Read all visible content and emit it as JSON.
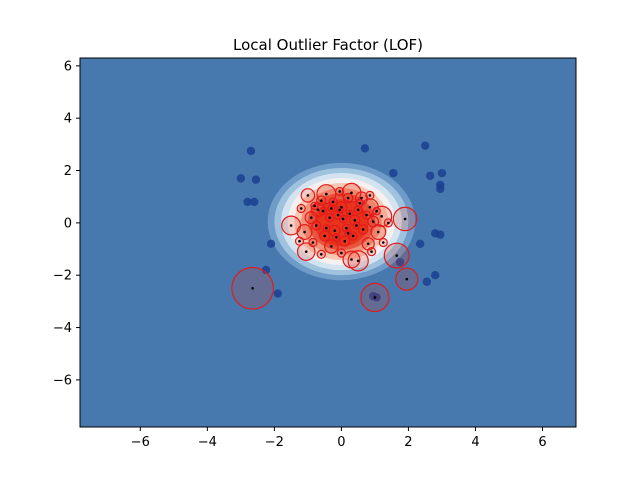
{
  "chart_data": {
    "type": "scatter",
    "title": "Local Outlier Factor (LOF)",
    "xlabel": "",
    "ylabel": "",
    "xlim": [
      -7.8,
      7.0
    ],
    "ylim": [
      -7.8,
      6.3
    ],
    "x_ticks": [
      -6,
      -4,
      -2,
      0,
      2,
      4,
      6
    ],
    "y_ticks": [
      -6,
      -4,
      -2,
      0,
      2,
      4,
      6
    ],
    "x_tick_labels": [
      "−6",
      "−4",
      "−2",
      "0",
      "2",
      "4",
      "6"
    ],
    "y_tick_labels": [
      "−6",
      "−4",
      "−2",
      "0",
      "2",
      "4",
      "6"
    ],
    "grid": false,
    "colors": {
      "background": "#4779ae",
      "dense_core": "#e8341c",
      "outlier_points": "#1a3f91",
      "sample_points": "#000000",
      "circle_edge": "#e31a1c"
    },
    "contour_levels": [
      {
        "rx": 2.2,
        "ry": 1.75,
        "color": "#6f9bc9"
      },
      {
        "rx": 2.0,
        "ry": 1.6,
        "color": "#9fc2de"
      },
      {
        "rx": 1.8,
        "ry": 1.45,
        "color": "#d3e4f0"
      },
      {
        "rx": 1.6,
        "ry": 1.3,
        "color": "#f6f1ef"
      },
      {
        "rx": 1.4,
        "ry": 1.15,
        "color": "#f7c9b4"
      },
      {
        "rx": 1.2,
        "ry": 1.0,
        "color": "#f2947a"
      },
      {
        "rx": 1.0,
        "ry": 0.85,
        "color": "#e8553e"
      }
    ],
    "outlier_points": [
      {
        "x": -2.7,
        "y": 2.75
      },
      {
        "x": -3.0,
        "y": 1.7
      },
      {
        "x": -2.55,
        "y": 1.65
      },
      {
        "x": -2.8,
        "y": 0.8
      },
      {
        "x": -2.6,
        "y": 0.8
      },
      {
        "x": 0.7,
        "y": 2.85
      },
      {
        "x": 1.55,
        "y": 1.9
      },
      {
        "x": 2.5,
        "y": 2.95
      },
      {
        "x": 2.65,
        "y": 1.8
      },
      {
        "x": 3.0,
        "y": 1.9
      },
      {
        "x": 2.95,
        "y": 1.45
      },
      {
        "x": 2.95,
        "y": 1.3
      },
      {
        "x": 2.8,
        "y": -0.4
      },
      {
        "x": 2.95,
        "y": -0.45
      },
      {
        "x": 2.35,
        "y": -0.8
      },
      {
        "x": 2.8,
        "y": -2.0
      },
      {
        "x": 2.55,
        "y": -2.25
      },
      {
        "x": -2.1,
        "y": -0.8
      },
      {
        "x": -2.25,
        "y": -1.8
      },
      {
        "x": -1.9,
        "y": -2.7
      },
      {
        "x": 0.95,
        "y": -2.8
      },
      {
        "x": 1.05,
        "y": -2.85
      },
      {
        "x": 1.75,
        "y": -1.5
      }
    ],
    "samples": [
      {
        "x": -2.65,
        "y": -2.5,
        "r": 0.62
      },
      {
        "x": 1.0,
        "y": -2.85,
        "r": 0.42
      },
      {
        "x": 1.95,
        "y": -2.15,
        "r": 0.33
      },
      {
        "x": 1.65,
        "y": -1.25,
        "r": 0.37
      },
      {
        "x": 1.9,
        "y": 0.15,
        "r": 0.35
      },
      {
        "x": 1.2,
        "y": 0.25,
        "r": 0.3
      },
      {
        "x": -1.5,
        "y": -0.1,
        "r": 0.28
      },
      {
        "x": -1.05,
        "y": -1.1,
        "r": 0.26
      },
      {
        "x": -1.1,
        "y": -0.35,
        "r": 0.22
      },
      {
        "x": 0.5,
        "y": -1.45,
        "r": 0.3
      },
      {
        "x": 0.3,
        "y": -1.4,
        "r": 0.25
      },
      {
        "x": 0.3,
        "y": 1.15,
        "r": 0.28
      },
      {
        "x": -0.45,
        "y": 1.1,
        "r": 0.28
      },
      {
        "x": -1.0,
        "y": 1.05,
        "r": 0.2
      },
      {
        "x": 0.85,
        "y": 0.6,
        "r": 0.25
      },
      {
        "x": 1.1,
        "y": -0.35,
        "r": 0.22
      },
      {
        "x": -0.7,
        "y": 0.5,
        "r": 0.2
      },
      {
        "x": 0.6,
        "y": 0.95,
        "r": 0.18
      },
      {
        "x": -0.3,
        "y": -0.9,
        "r": 0.2
      },
      {
        "x": 0.8,
        "y": -0.8,
        "r": 0.18
      },
      {
        "x": -0.9,
        "y": 0.2,
        "r": 0.18
      },
      {
        "x": 0.0,
        "y": 0.6,
        "r": 0.16
      },
      {
        "x": -0.2,
        "y": -0.3,
        "r": 0.16
      },
      {
        "x": 0.4,
        "y": 0.1,
        "r": 0.15
      },
      {
        "x": 0.1,
        "y": -0.7,
        "r": 0.15
      },
      {
        "x": -0.5,
        "y": -0.5,
        "r": 0.15
      },
      {
        "x": 0.95,
        "y": 0.05,
        "r": 0.16
      },
      {
        "x": -0.6,
        "y": 0.85,
        "r": 0.14
      },
      {
        "x": 0.2,
        "y": 0.95,
        "r": 0.14
      },
      {
        "x": 0.65,
        "y": -0.25,
        "r": 0.14
      },
      {
        "x": -0.1,
        "y": 0.3,
        "r": 0.13
      },
      {
        "x": -0.75,
        "y": -0.1,
        "r": 0.13
      },
      {
        "x": 0.5,
        "y": 0.5,
        "r": 0.12
      },
      {
        "x": -0.35,
        "y": 0.2,
        "r": 0.12
      },
      {
        "x": 0.15,
        "y": -0.2,
        "r": 0.12
      },
      {
        "x": 0.75,
        "y": 0.3,
        "r": 0.12
      },
      {
        "x": -0.25,
        "y": 0.8,
        "r": 0.12
      },
      {
        "x": 0.35,
        "y": -0.5,
        "r": 0.12
      },
      {
        "x": -0.55,
        "y": 0.45,
        "r": 0.11
      },
      {
        "x": 0.05,
        "y": 0.15,
        "r": 0.11
      },
      {
        "x": -0.15,
        "y": -0.55,
        "r": 0.11
      },
      {
        "x": 0.55,
        "y": 0.75,
        "r": 0.11
      },
      {
        "x": -0.8,
        "y": 0.65,
        "r": 0.11
      },
      {
        "x": 1.05,
        "y": 0.45,
        "r": 0.11
      },
      {
        "x": -1.2,
        "y": 0.55,
        "r": 0.12
      },
      {
        "x": -1.25,
        "y": -0.7,
        "r": 0.12
      },
      {
        "x": 1.25,
        "y": -0.75,
        "r": 0.12
      },
      {
        "x": 0.9,
        "y": -1.1,
        "r": 0.12
      },
      {
        "x": -0.6,
        "y": -1.2,
        "r": 0.12
      },
      {
        "x": 0.0,
        "y": -1.15,
        "r": 0.12
      },
      {
        "x": -0.05,
        "y": 1.2,
        "r": 0.12
      },
      {
        "x": 0.85,
        "y": 1.05,
        "r": 0.12
      },
      {
        "x": -0.85,
        "y": -0.75,
        "r": 0.12
      },
      {
        "x": 1.4,
        "y": 0.0,
        "r": 0.12
      },
      {
        "x": 0.25,
        "y": 0.35,
        "r": 0.1
      },
      {
        "x": -0.45,
        "y": -0.2,
        "r": 0.1
      },
      {
        "x": 0.45,
        "y": -0.1,
        "r": 0.1
      },
      {
        "x": -0.05,
        "y": 0.5,
        "r": 0.1
      },
      {
        "x": -0.3,
        "y": 0.55,
        "r": 0.1
      },
      {
        "x": 0.2,
        "y": -0.4,
        "r": 0.1
      }
    ]
  }
}
